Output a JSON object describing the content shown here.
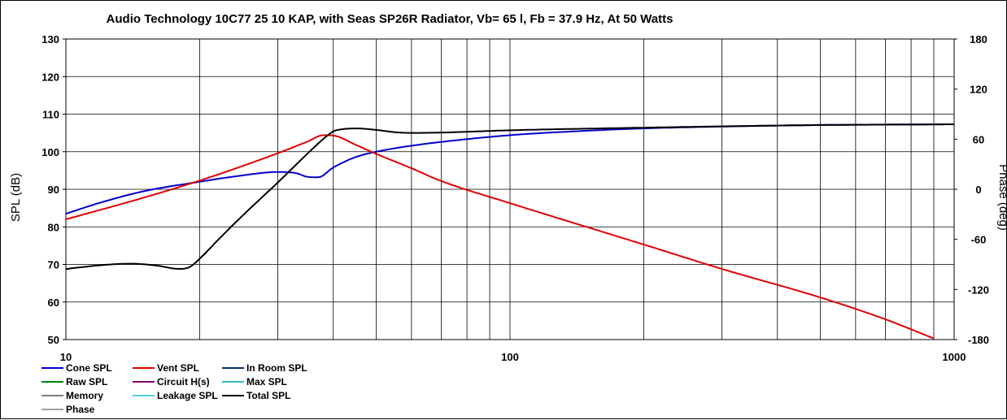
{
  "chart_data": {
    "type": "line",
    "title": "Audio Technology 10C77 25 10 KAP,  with Seas SP26R Radiator, Vb= 65 l,  Fb = 37.9 Hz,  At 50 Watts",
    "xlabel": "",
    "ylabel": "SPL (dB)",
    "y2label": "Phase (deg)",
    "x_scale": "log",
    "xlim": [
      10,
      1000
    ],
    "ylim": [
      50,
      130
    ],
    "y2lim": [
      -180,
      180
    ],
    "x_ticks": [
      "10",
      "100",
      "1000"
    ],
    "y_ticks": [
      "130",
      "120",
      "110",
      "100",
      "90",
      "80",
      "70",
      "60",
      "50"
    ],
    "y2_ticks": [
      "180",
      "120",
      "60",
      "0",
      "-60",
      "-120",
      "-180"
    ],
    "grid": true,
    "legend": {
      "placement": "bottom",
      "entries": [
        {
          "name": "Cone SPL",
          "color": "#0000cc"
        },
        {
          "name": "Vent SPL",
          "color": "#e00000"
        },
        {
          "name": "In Room SPL",
          "color": "#003366"
        },
        {
          "name": "Raw SPL",
          "color": "#008000"
        },
        {
          "name": "Circuit H(s)",
          "color": "#800080"
        },
        {
          "name": "Max SPL",
          "color": "#33bbbb"
        },
        {
          "name": "Memory",
          "color": "#808080"
        },
        {
          "name": "Leakage SPL",
          "color": "#55ccee"
        },
        {
          "name": "Total SPL",
          "color": "#000000"
        },
        {
          "name": "Phase",
          "color": "#a0a0a0"
        }
      ]
    },
    "series": [
      {
        "name": "Cone SPL",
        "color": "#0000cc",
        "x": [
          10,
          12,
          15,
          20,
          25,
          30,
          33,
          35,
          37,
          40,
          45,
          50,
          60,
          70,
          100,
          150,
          200,
          300,
          500,
          700,
          1000
        ],
        "y": [
          83.5,
          86.5,
          89.5,
          92,
          93.7,
          94.6,
          94.3,
          93.3,
          93.2,
          95.8,
          98.6,
          100,
          101.6,
          102.6,
          104.4,
          105.6,
          106.2,
          106.7,
          107.1,
          107.2,
          107.3
        ]
      },
      {
        "name": "Vent SPL",
        "color": "#e00000",
        "x": [
          10,
          15,
          20,
          25,
          30,
          35,
          38,
          40,
          45,
          50,
          60,
          70,
          100,
          200,
          300,
          500,
          700,
          900
        ],
        "y": [
          82,
          87.8,
          92.3,
          96.2,
          99.6,
          102.7,
          104.4,
          104.3,
          101.8,
          99.4,
          95.6,
          92.2,
          86.3,
          75.3,
          68.8,
          61.2,
          55.4,
          50.3
        ]
      },
      {
        "name": "Total SPL",
        "color": "#000000",
        "x": [
          10,
          12,
          14,
          16,
          18,
          19,
          20,
          22,
          25,
          30,
          35,
          38,
          40,
          42,
          45,
          50,
          55,
          60,
          70,
          100,
          200,
          500,
          1000
        ],
        "y": [
          68.8,
          69.8,
          70.2,
          69.7,
          68.8,
          69.3,
          71.5,
          76.5,
          83,
          91.8,
          99.5,
          103.4,
          105.4,
          106,
          106.2,
          105.8,
          105.2,
          105,
          105.1,
          105.7,
          106.4,
          107.1,
          107.3
        ]
      }
    ]
  }
}
